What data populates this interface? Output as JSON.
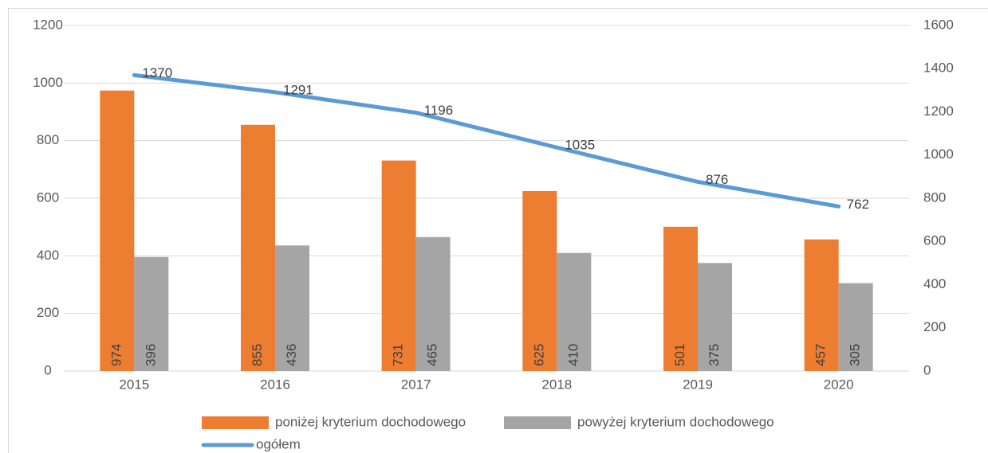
{
  "chart_data": {
    "type": "bar",
    "categories": [
      "2015",
      "2016",
      "2017",
      "2018",
      "2019",
      "2020"
    ],
    "series": [
      {
        "name": "poniżej kryterium dochodowego",
        "color": "#ed7d31",
        "values": [
          974,
          855,
          731,
          625,
          501,
          457
        ]
      },
      {
        "name": "powyżej kryterium dochodowego",
        "color": "#a5a5a5",
        "values": [
          396,
          436,
          465,
          410,
          375,
          305
        ]
      },
      {
        "name": "ogółem",
        "color": "#5b9bd5",
        "type": "line",
        "axis": "y2",
        "values": [
          1370,
          1291,
          1196,
          1035,
          876,
          762
        ]
      }
    ],
    "ylim": [
      0,
      1200
    ],
    "yticks": [
      0,
      200,
      400,
      600,
      800,
      1000,
      1200
    ],
    "y2lim": [
      0,
      1600
    ],
    "y2ticks": [
      0,
      200,
      400,
      600,
      800,
      1000,
      1200,
      1400,
      1600
    ],
    "grid": true,
    "legend": "bottom"
  }
}
